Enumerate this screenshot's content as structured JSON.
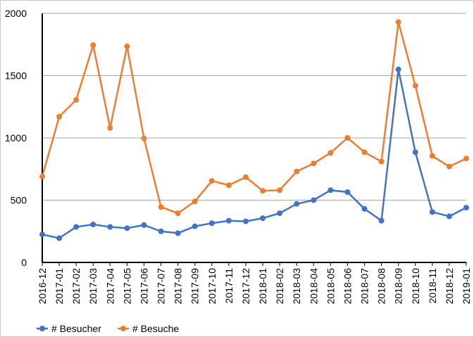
{
  "chart_data": {
    "type": "line",
    "title": "",
    "xlabel": "",
    "ylabel": "",
    "ylim": [
      0,
      2000
    ],
    "yticks": [
      0,
      500,
      1000,
      1500,
      2000
    ],
    "grid": true,
    "legend_position": "bottom-left",
    "categories": [
      "2016-12",
      "2017-01",
      "2017-02",
      "2017-03",
      "2017-04",
      "2017-05",
      "2017-06",
      "2017-07",
      "2017-08",
      "2017-09",
      "2017-10",
      "2017-11",
      "2017-12",
      "2018-01",
      "2018-02",
      "2018-03",
      "2018-04",
      "2018-05",
      "2018-06",
      "2018-07",
      "2018-08",
      "2018-09",
      "2018-10",
      "2018-11",
      "2018-12",
      "2019-01"
    ],
    "series": [
      {
        "name": "# Besucher",
        "color": "#4472c4",
        "values": [
          225,
          195,
          285,
          305,
          285,
          275,
          300,
          250,
          235,
          290,
          315,
          335,
          330,
          355,
          395,
          470,
          500,
          580,
          565,
          430,
          335,
          1550,
          885,
          405,
          370,
          440
        ]
      },
      {
        "name": "# Besuche",
        "color": "#ed7d31",
        "values": [
          690,
          1170,
          1305,
          1745,
          1080,
          1735,
          995,
          445,
          395,
          490,
          655,
          620,
          685,
          575,
          580,
          730,
          795,
          880,
          1000,
          885,
          810,
          1930,
          1420,
          855,
          770,
          835
        ]
      }
    ]
  }
}
